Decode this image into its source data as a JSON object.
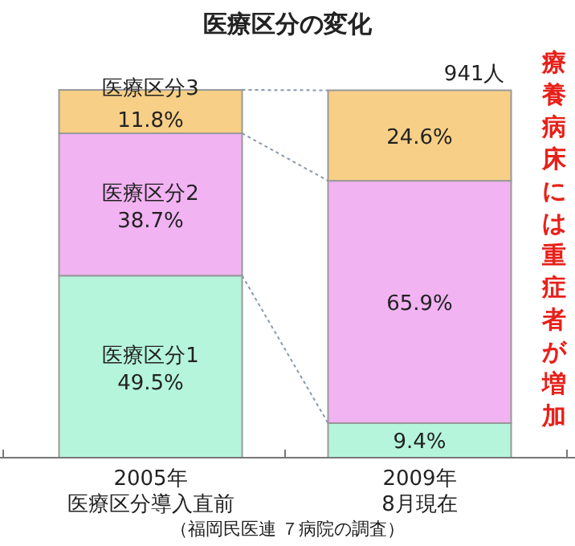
{
  "chart_data": {
    "type": "bar",
    "stacked": true,
    "title": "医療区分の変化",
    "categories": [
      "2005年医療区分導入直前",
      "2009年8月現在"
    ],
    "series": [
      {
        "name": "医療区分1",
        "color": "#b5f5dc",
        "values": [
          49.5,
          9.4
        ],
        "value_labels": [
          "49.5%",
          "9.4%"
        ]
      },
      {
        "name": "医療区分2",
        "color": "#f2b3f2",
        "values": [
          38.7,
          65.9
        ],
        "value_labels": [
          "38.7%",
          "65.9%"
        ]
      },
      {
        "name": "医療区分3",
        "color": "#f7cf86",
        "values": [
          11.8,
          24.6
        ],
        "value_labels": [
          "11.8%",
          "24.6%"
        ]
      }
    ],
    "annotations": [
      "941人",
      "療養病床には重症者が増加",
      "（福岡民医連 ７病院の調査）"
    ]
  }
}
